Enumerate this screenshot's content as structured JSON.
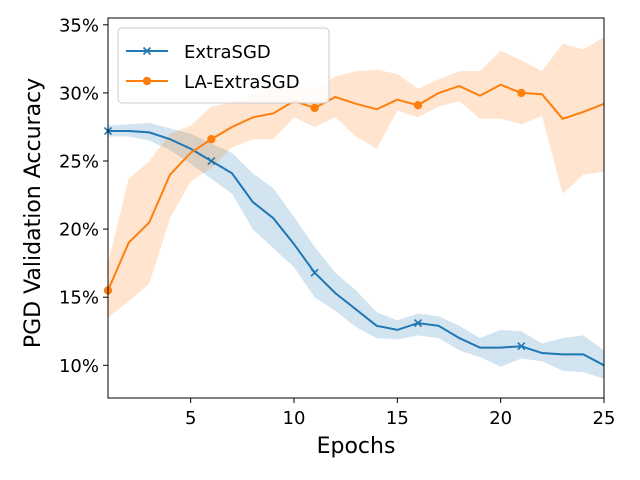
{
  "chart_data": {
    "type": "line",
    "xlabel": "Epochs",
    "ylabel": "PGD Validation Accuracy",
    "xlim": [
      1,
      25
    ],
    "ylim": [
      7.6,
      35.5
    ],
    "x_ticks": [
      5,
      10,
      15,
      20,
      25
    ],
    "y_ticks": [
      10,
      15,
      20,
      25,
      30,
      35
    ],
    "y_tick_labels": [
      "10%",
      "15%",
      "20%",
      "25%",
      "30%",
      "35%"
    ],
    "grid": false,
    "legend_position": "top-left",
    "x": [
      1,
      2,
      3,
      4,
      5,
      6,
      7,
      8,
      9,
      10,
      11,
      12,
      13,
      14,
      15,
      16,
      17,
      18,
      19,
      20,
      21,
      22,
      23,
      24,
      25
    ],
    "series": [
      {
        "name": "ExtraSGD",
        "color": "#1f77b4",
        "marker": "x",
        "marker_every": 5,
        "values": [
          27.2,
          27.2,
          27.1,
          26.6,
          25.9,
          25.0,
          24.1,
          22.0,
          20.8,
          18.9,
          16.8,
          15.3,
          14.1,
          12.9,
          12.6,
          13.1,
          12.9,
          12.0,
          11.3,
          11.3,
          11.4,
          10.9,
          10.8,
          10.8,
          10.0
        ],
        "band_lower": [
          26.8,
          26.8,
          26.5,
          25.8,
          24.8,
          23.7,
          22.6,
          20.0,
          18.6,
          17.2,
          15.0,
          14.0,
          12.8,
          12.0,
          11.9,
          12.2,
          12.0,
          11.1,
          10.6,
          9.9,
          10.5,
          10.3,
          9.6,
          9.5,
          9.0
        ],
        "band_upper": [
          27.6,
          27.7,
          27.8,
          27.4,
          27.0,
          26.3,
          25.6,
          24.1,
          23.0,
          20.9,
          18.7,
          16.8,
          15.5,
          13.9,
          13.3,
          13.8,
          13.6,
          12.9,
          12.0,
          12.6,
          12.5,
          11.6,
          12.0,
          12.2,
          11.1
        ]
      },
      {
        "name": "LA-ExtraSGD",
        "color": "#ff7f0e",
        "marker": "o",
        "marker_every": 5,
        "values": [
          15.5,
          19.0,
          20.5,
          24.0,
          25.6,
          26.6,
          27.5,
          28.2,
          28.5,
          29.4,
          28.9,
          29.7,
          29.2,
          28.8,
          29.5,
          29.1,
          30.0,
          30.5,
          29.8,
          30.6,
          30.0,
          29.9,
          28.1,
          28.6,
          29.2
        ],
        "band_lower": [
          13.5,
          14.7,
          16.0,
          20.8,
          23.5,
          24.5,
          26.0,
          26.6,
          26.6,
          28.2,
          27.5,
          28.2,
          26.8,
          25.9,
          28.7,
          28.2,
          29.0,
          29.4,
          28.1,
          28.1,
          27.7,
          28.3,
          22.6,
          24.0,
          24.2
        ],
        "band_upper": [
          17.5,
          23.7,
          25.0,
          27.0,
          27.6,
          29.0,
          29.3,
          29.9,
          30.4,
          30.6,
          30.3,
          31.2,
          31.6,
          31.7,
          31.4,
          30.3,
          31.0,
          31.6,
          31.6,
          33.1,
          32.4,
          31.6,
          33.6,
          33.2,
          34.1
        ]
      }
    ]
  }
}
